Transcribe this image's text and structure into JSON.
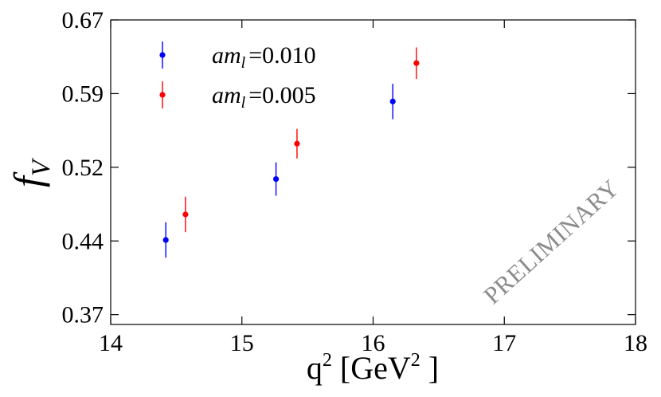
{
  "chart_data": {
    "type": "scatter",
    "title": "",
    "xlabel": {
      "base": "q",
      "sup1": "2",
      "bracket_open": " [GeV",
      "sup2": "2",
      "bracket_close": " ]"
    },
    "ylabel": {
      "main": "f",
      "sub": "V"
    },
    "xlim": [
      14,
      18
    ],
    "ylim": [
      0.36,
      0.67
    ],
    "x_ticks": [
      "14",
      "15",
      "16",
      "17",
      "18"
    ],
    "y_ticks": [
      "0.37",
      "0.44",
      "0.52",
      "0.59",
      "0.67"
    ],
    "y_tick_values": [
      0.37,
      0.445,
      0.52,
      0.595,
      0.67
    ],
    "legend_position": "upper-left",
    "series": [
      {
        "name": "am_l=0.010",
        "label_main": "am",
        "label_sub": "l",
        "label_value": "=0.010",
        "color": "#0000ff",
        "points": [
          {
            "x": 14.42,
            "y": 0.446,
            "err": 0.018
          },
          {
            "x": 15.26,
            "y": 0.508,
            "err": 0.017
          },
          {
            "x": 16.15,
            "y": 0.587,
            "err": 0.018
          }
        ]
      },
      {
        "name": "am_l=0.005",
        "label_main": "am",
        "label_sub": "l",
        "label_value": "=0.005",
        "color": "#ff0000",
        "points": [
          {
            "x": 14.57,
            "y": 0.472,
            "err": 0.018
          },
          {
            "x": 15.42,
            "y": 0.544,
            "err": 0.015
          },
          {
            "x": 16.33,
            "y": 0.626,
            "err": 0.016
          }
        ]
      }
    ],
    "watermark": "PRELIMINARY"
  }
}
